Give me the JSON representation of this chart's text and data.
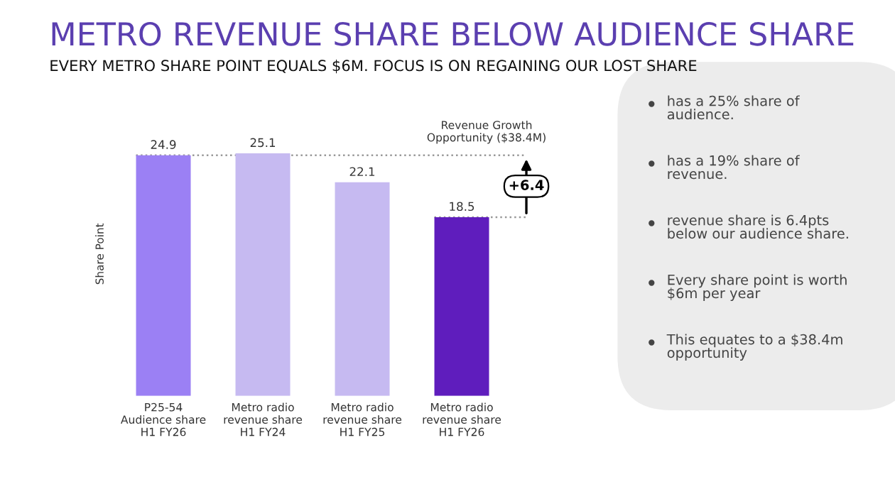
{
  "chart_data": {
    "type": "bar",
    "title": "METRO REVENUE SHARE BELOW AUDIENCE SHARE",
    "subtitle": "EVERY METRO SHARE POINT EQUALS $6M. FOCUS IS ON REGAINING OUR LOST SHARE",
    "ylabel": "Share Point",
    "categories": [
      "P25-54\nAudience share\nH1 FY26",
      "Metro radio\nrevenue share\nH1 FY24",
      "Metro radio\nrevenue share\nH1 FY25",
      "Metro radio\nrevenue share\nH1 FY26"
    ],
    "values": [
      24.9,
      25.1,
      22.1,
      18.5
    ],
    "colors": [
      "#9b80f4",
      "#c6baf1",
      "#c6baf1",
      "#5f1dbd"
    ],
    "data_labels": true,
    "ref_lines": [
      {
        "axis": "y",
        "value": 24.9,
        "color": "#999999",
        "line_style": "dotted"
      },
      {
        "axis": "y",
        "value": 18.5,
        "color": "#999999",
        "line_style": "dotted"
      }
    ],
    "annotations": [
      "Revenue Growth\nOpportunity ($38.4M)",
      "+6.4",
      "has a 25% share of\naudience.",
      "has a 19% share of\nrevenue.",
      "revenue share is 6.4pts\nbelow our audience share.",
      "Every share point is worth\n$6m per year",
      "This equates to a $38.4m\nopportunity"
    ]
  }
}
